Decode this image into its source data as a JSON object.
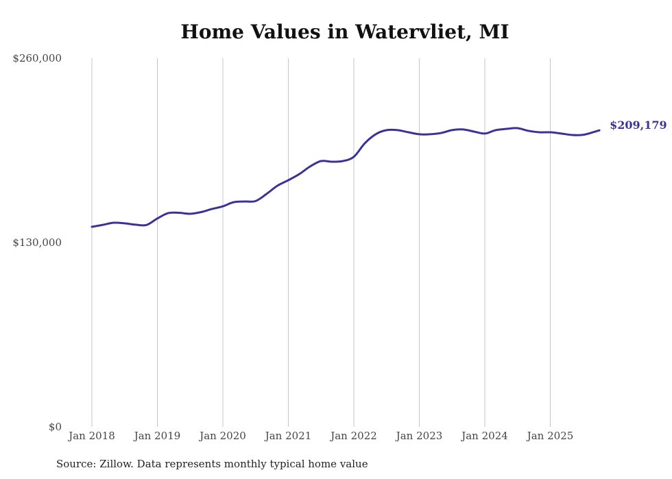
{
  "chart_data": {
    "type": "line",
    "title": "Home Values in Watervliet, MI",
    "source": "Source: Zillow. Data represents monthly typical home value",
    "xlabel": "",
    "ylabel": "",
    "ylim": [
      0,
      260000
    ],
    "y_ticks": [
      {
        "value": 0,
        "label": "$0"
      },
      {
        "value": 130000,
        "label": "$130,000"
      },
      {
        "value": 260000,
        "label": "$260,000"
      }
    ],
    "x_ticks": [
      {
        "date": "2018-01",
        "label": "Jan 2018"
      },
      {
        "date": "2019-01",
        "label": "Jan 2019"
      },
      {
        "date": "2020-01",
        "label": "Jan 2020"
      },
      {
        "date": "2021-01",
        "label": "Jan 2021"
      },
      {
        "date": "2022-01",
        "label": "Jan 2022"
      },
      {
        "date": "2023-01",
        "label": "Jan 2023"
      },
      {
        "date": "2024-01",
        "label": "Jan 2024"
      },
      {
        "date": "2025-01",
        "label": "Jan 2025"
      }
    ],
    "grid": "vertical",
    "line_color": "#3a3296",
    "end_label": "$209,179",
    "series": [
      {
        "name": "Typical home value",
        "x": [
          "2018-01",
          "2018-03",
          "2018-05",
          "2018-07",
          "2018-09",
          "2018-11",
          "2019-01",
          "2019-03",
          "2019-05",
          "2019-07",
          "2019-09",
          "2019-11",
          "2020-01",
          "2020-03",
          "2020-05",
          "2020-07",
          "2020-09",
          "2020-11",
          "2021-01",
          "2021-03",
          "2021-05",
          "2021-07",
          "2021-09",
          "2021-11",
          "2022-01",
          "2022-03",
          "2022-05",
          "2022-07",
          "2022-09",
          "2022-11",
          "2023-01",
          "2023-03",
          "2023-05",
          "2023-07",
          "2023-09",
          "2023-11",
          "2024-01",
          "2024-03",
          "2024-05",
          "2024-07",
          "2024-09",
          "2024-11",
          "2025-01",
          "2025-03",
          "2025-05",
          "2025-07",
          "2025-09",
          "2025-10"
        ],
        "values": [
          141100,
          142500,
          144000,
          143600,
          142600,
          142400,
          147000,
          150800,
          151000,
          150300,
          151500,
          153700,
          155600,
          158500,
          159000,
          159300,
          164300,
          170100,
          174000,
          178300,
          183700,
          187500,
          187000,
          187500,
          190500,
          200000,
          206400,
          209300,
          209300,
          207800,
          206400,
          206400,
          207300,
          209300,
          209800,
          208300,
          206900,
          209300,
          210200,
          210700,
          208800,
          207800,
          207800,
          206900,
          205900,
          206000,
          208000,
          209179
        ]
      }
    ]
  }
}
